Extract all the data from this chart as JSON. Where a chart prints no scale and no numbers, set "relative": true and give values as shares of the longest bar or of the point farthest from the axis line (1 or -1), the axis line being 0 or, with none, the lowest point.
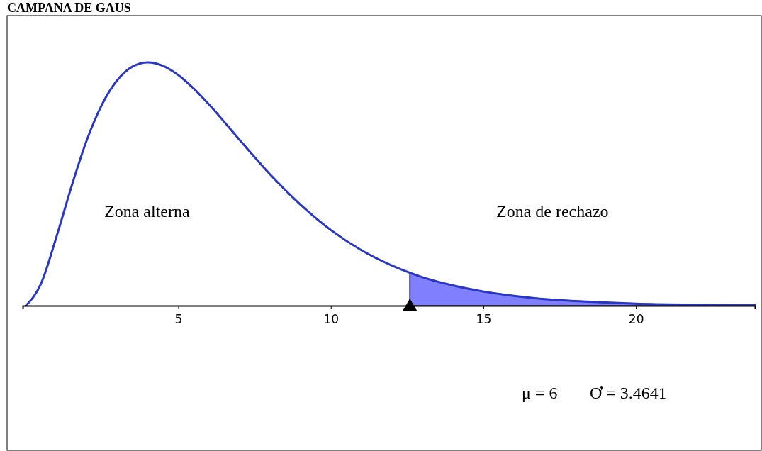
{
  "chart_data": {
    "type": "line",
    "title": "CAMPANA DE GAUS",
    "relative": true,
    "xlim": [
      -0.1,
      23.9
    ],
    "xticks": [
      5,
      10,
      15,
      20
    ],
    "series": [
      {
        "color": "#2a36c4",
        "x": [
          0,
          0.5,
          1,
          1.5,
          2,
          2.5,
          3,
          3.5,
          4,
          4.5,
          5,
          5.5,
          6,
          7,
          8,
          9,
          10,
          11,
          12,
          12.59,
          13,
          14,
          15,
          16,
          17,
          18,
          19,
          20,
          22,
          23.9
        ],
        "values": [
          0,
          0.09,
          0.28,
          0.49,
          0.68,
          0.827,
          0.927,
          0.983,
          1,
          0.986,
          0.948,
          0.893,
          0.828,
          0.683,
          0.541,
          0.416,
          0.311,
          0.228,
          0.165,
          0.135,
          0.117,
          0.083,
          0.058,
          0.04,
          0.027,
          0.019,
          0.013,
          0.008,
          0.004,
          0.002
        ]
      },
      {
        "type": "area",
        "color": "#8080ff",
        "x": [
          12.59,
          13,
          14,
          15,
          16,
          17,
          18,
          19,
          20,
          22,
          23.9
        ],
        "values": [
          0.135,
          0.117,
          0.083,
          0.058,
          0.04,
          0.027,
          0.019,
          0.013,
          0.008,
          0.004,
          0.002
        ]
      }
    ],
    "annotations": [
      "Zona alterna",
      "Zona de rechazo",
      "μ = 6",
      "Ơ = 3.4641"
    ]
  }
}
